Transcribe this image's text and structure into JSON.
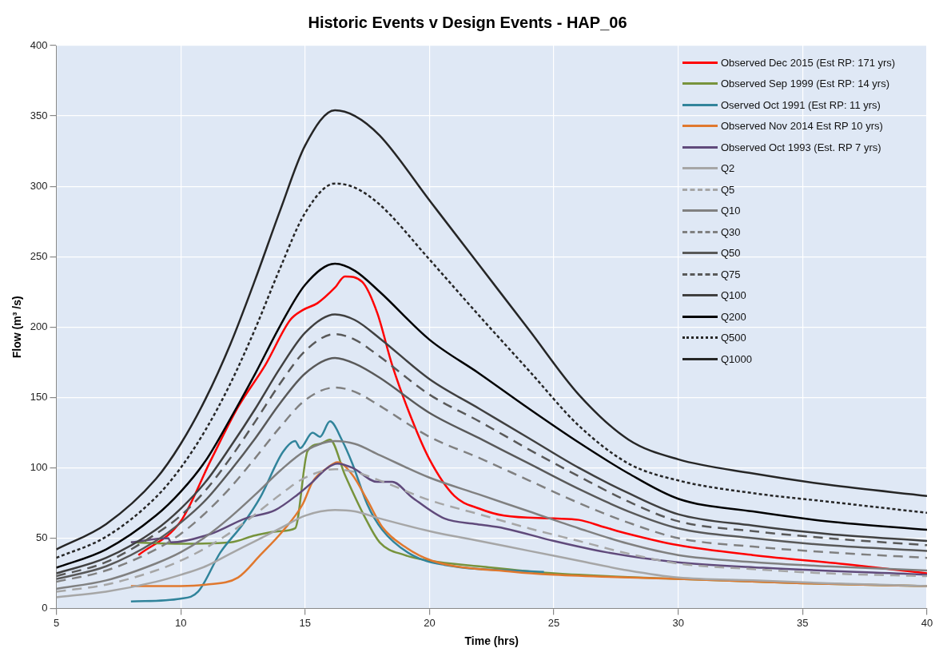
{
  "chart_data": {
    "type": "line",
    "title": "Historic Events v Design Events - HAP_06",
    "xlabel": "Time (hrs)",
    "ylabel": "Flow (m³ /s)",
    "xlim": [
      5,
      40
    ],
    "xticks": [
      5,
      10,
      15,
      20,
      25,
      30,
      35,
      40
    ],
    "ylim": [
      0,
      400
    ],
    "yticks": [
      0,
      50,
      100,
      150,
      200,
      250,
      300,
      350,
      400
    ],
    "grid": true,
    "legend": "top right",
    "marker": "none",
    "series": [
      {
        "name": "Observed Dec 2015 (Est RP: 171 yrs)",
        "color": "#ff0000",
        "line_style": "solid",
        "x": [
          8.3,
          10,
          11.2,
          12.3,
          13.4,
          14.4,
          14.9,
          15.5,
          16.2,
          16.6,
          17.3,
          17.9,
          18.5,
          19.3,
          20,
          21,
          22,
          23,
          25,
          26,
          27,
          28,
          30,
          33,
          37,
          40
        ],
        "values": [
          38,
          62,
          105,
          143,
          173,
          205,
          212,
          217,
          228,
          236,
          232,
          210,
          173,
          134,
          106,
          80,
          71,
          66,
          64,
          63,
          58,
          53,
          45,
          38,
          31,
          25
        ]
      },
      {
        "name": "Observed Sep 1999 (Est RP: 14 yrs)",
        "color": "#77933c",
        "line_style": "solid",
        "x": [
          8,
          10,
          12,
          13,
          14,
          14.6,
          15.1,
          15.6,
          16,
          16.6,
          17.4,
          18,
          19,
          20,
          22,
          25,
          30,
          35,
          40
        ],
        "values": [
          47,
          46,
          47,
          52,
          55,
          57,
          112,
          117,
          120,
          95,
          65,
          47,
          38,
          34,
          30,
          25,
          21,
          18,
          16
        ]
      },
      {
        "name": "Oserved Oct 1991 (Est RP: 11 yrs)",
        "color": "#31849b",
        "line_style": "solid",
        "x": [
          8,
          10,
          10.7,
          11.6,
          12.5,
          13.2,
          14.1,
          14.6,
          14.8,
          15.3,
          15.6,
          16,
          16.5,
          16.9,
          17.5,
          18.1,
          19.3,
          20.6,
          24.6
        ],
        "values": [
          5,
          7,
          12,
          40,
          60,
          79,
          111,
          119,
          114,
          125,
          122,
          133,
          119,
          103,
          74,
          56,
          38,
          31,
          26
        ]
      },
      {
        "name": "Observed Nov 2014 Est RP 10 yrs)",
        "color": "#e0782e",
        "line_style": "solid",
        "x": [
          8,
          10,
          11,
          12.3,
          13.2,
          14.1,
          14.9,
          15.3,
          15.9,
          16.3,
          16.9,
          17.5,
          18.1,
          19,
          20.1,
          23.4,
          25,
          30,
          35,
          40
        ],
        "values": [
          16,
          16,
          17,
          22,
          38,
          55,
          74,
          90,
          100,
          104,
          95,
          77,
          58,
          44,
          34,
          26,
          24,
          21,
          18,
          16
        ]
      },
      {
        "name": "Observed Oct 1993 (Est. RP 7 yrs)",
        "color": "#604a7b",
        "line_style": "solid",
        "x": [
          8,
          9.5,
          9.6,
          11.2,
          12.6,
          13.8,
          14.7,
          15.3,
          15.9,
          16.3,
          16.9,
          17.9,
          18.5,
          19.3,
          20.6,
          21.9,
          23,
          25,
          27.1,
          29.9,
          33.4,
          40
        ],
        "values": [
          47,
          50,
          47,
          53,
          64,
          70,
          81,
          90,
          100,
          103,
          100,
          90,
          90,
          79,
          64,
          60,
          57,
          48,
          40,
          33,
          29,
          24
        ]
      },
      {
        "name": "Q2",
        "color": "#a6a6a6",
        "line_style": "solid",
        "x": [
          5,
          7,
          9,
          10,
          11,
          12,
          13,
          14,
          15,
          16.2,
          17,
          18,
          20,
          22,
          24,
          26,
          28,
          30,
          33,
          36,
          40
        ],
        "values": [
          8,
          12,
          19,
          24,
          30,
          39,
          48,
          57,
          66,
          70,
          69,
          64,
          55,
          48,
          41,
          34,
          27,
          22,
          20,
          18,
          16
        ]
      },
      {
        "name": "Q5",
        "color": "#a6a6a6",
        "line_style": "dashed",
        "x": [
          5,
          7,
          9,
          10,
          11,
          12,
          13,
          14,
          15,
          16.2,
          17,
          18,
          20,
          22,
          24,
          26,
          28,
          30,
          33,
          36,
          40
        ],
        "values": [
          12,
          17,
          27,
          34,
          43,
          54,
          67,
          81,
          93,
          99,
          97,
          91,
          77,
          67,
          57,
          48,
          39,
          32,
          28,
          25,
          23
        ]
      },
      {
        "name": "Q10",
        "color": "#808080",
        "line_style": "solid",
        "x": [
          5,
          7,
          9,
          10,
          11,
          12,
          13,
          14,
          15,
          16.2,
          17,
          18,
          20,
          22,
          24,
          26,
          28,
          30,
          33,
          36,
          40
        ],
        "values": [
          14,
          20,
          32,
          40,
          51,
          65,
          81,
          98,
          112,
          119,
          117,
          109,
          93,
          81,
          69,
          57,
          46,
          38,
          33,
          30,
          27
        ]
      },
      {
        "name": "Q30",
        "color": "#808080",
        "line_style": "dashed",
        "x": [
          5,
          7,
          9,
          10,
          11,
          12,
          13,
          14,
          15,
          16.2,
          17,
          18,
          20,
          22,
          24,
          26,
          28,
          30,
          33,
          36,
          40
        ],
        "values": [
          19,
          27,
          42,
          53,
          68,
          86,
          107,
          129,
          148,
          157,
          154,
          144,
          122,
          107,
          91,
          75,
          61,
          50,
          44,
          40,
          36
        ]
      },
      {
        "name": "Q50",
        "color": "#595959",
        "line_style": "solid",
        "x": [
          5,
          7,
          9,
          10,
          11,
          12,
          13,
          14,
          15,
          16.2,
          17,
          18,
          20,
          22,
          24,
          26,
          28,
          30,
          33,
          36,
          40
        ],
        "values": [
          21,
          30,
          48,
          61,
          77,
          98,
          121,
          146,
          167,
          178,
          174,
          164,
          139,
          121,
          103,
          85,
          69,
          57,
          50,
          45,
          41
        ]
      },
      {
        "name": "Q75",
        "color": "#595959",
        "line_style": "dashed",
        "x": [
          5,
          7,
          9,
          10,
          11,
          12,
          13,
          14,
          15,
          16.2,
          17,
          18,
          20,
          22,
          24,
          26,
          28,
          30,
          33,
          36,
          40
        ],
        "values": [
          23,
          33,
          53,
          66,
          84,
          107,
          133,
          160,
          183,
          195,
          191,
          179,
          152,
          133,
          113,
          94,
          76,
          62,
          55,
          50,
          45
        ]
      },
      {
        "name": "Q100",
        "color": "#404040",
        "line_style": "solid",
        "x": [
          5,
          7,
          9,
          10,
          11,
          12,
          13,
          14,
          15,
          16.2,
          17,
          18,
          20,
          22,
          24,
          26,
          28,
          30,
          33,
          36,
          40
        ],
        "values": [
          25,
          36,
          56,
          71,
          90,
          115,
          142,
          171,
          196,
          209,
          205,
          192,
          163,
          142,
          121,
          100,
          82,
          67,
          59,
          53,
          48
        ]
      },
      {
        "name": "Q200",
        "color": "#000000",
        "line_style": "solid",
        "x": [
          5,
          7,
          9,
          10,
          11,
          12,
          13,
          14,
          15,
          16.2,
          17,
          18,
          20,
          22,
          24,
          26,
          28,
          30,
          33,
          36,
          40
        ],
        "values": [
          29,
          42,
          66,
          83,
          105,
          135,
          167,
          201,
          230,
          245,
          240,
          225,
          191,
          167,
          142,
          118,
          96,
          78,
          69,
          62,
          56
        ]
      },
      {
        "name": "Q500",
        "color": "#262626",
        "line_style": "dotted",
        "x": [
          5,
          7,
          9,
          10,
          11,
          12,
          13,
          14,
          15,
          16.2,
          17,
          18,
          20,
          22,
          24,
          26,
          28,
          30,
          33,
          36,
          40
        ],
        "values": [
          36,
          51,
          79,
          100,
          127,
          160,
          199,
          242,
          281,
          302,
          299,
          287,
          248,
          208,
          169,
          130,
          103,
          91,
          82,
          76,
          68
        ]
      },
      {
        "name": "Q1000",
        "color": "#262626",
        "line_style": "solid",
        "x": [
          5,
          7,
          9,
          10,
          11,
          12,
          13,
          14,
          15,
          16.2,
          17,
          18,
          20,
          22,
          24,
          26,
          28,
          30,
          33,
          36,
          40
        ],
        "values": [
          42,
          60,
          92,
          117,
          149,
          188,
          234,
          283,
          329,
          354,
          350,
          336,
          290,
          244,
          198,
          152,
          120,
          106,
          96,
          88,
          80
        ]
      }
    ]
  }
}
